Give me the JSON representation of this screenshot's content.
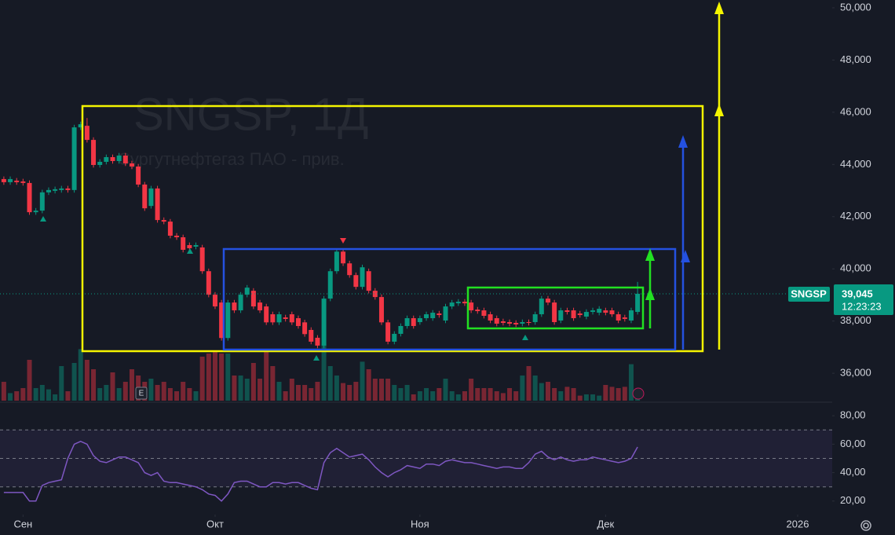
{
  "chart_data": {
    "type": "candlestick",
    "title": "SNGSP, 1Д",
    "subtitle": "Сургутнефтегаз ПАО - прив.",
    "symbol": "SNGSP",
    "last_price": {
      "value": 39045,
      "label": "39,045"
    },
    "countdown": "12:23:23",
    "up_color": "#089981",
    "down_color": "#f23645",
    "xlim": [
      -0.6,
      129.4
    ],
    "xticks": [
      {
        "value": 3,
        "label": "Сен"
      },
      {
        "value": 33,
        "label": "Окт"
      },
      {
        "value": 65,
        "label": "Ноя"
      },
      {
        "value": 94,
        "label": "Дек"
      },
      {
        "value": 124,
        "label": "2026"
      }
    ],
    "ylim": [
      34950,
      50300
    ],
    "yticks": [
      {
        "value": 36000,
        "label": "36,000"
      },
      {
        "value": 38000,
        "label": "38,000"
      },
      {
        "value": 40000,
        "label": "40,000"
      },
      {
        "value": 42000,
        "label": "42,000"
      },
      {
        "value": 44000,
        "label": "44,000"
      },
      {
        "value": 46000,
        "label": "46,000"
      },
      {
        "value": 48000,
        "label": "48,000"
      },
      {
        "value": 50000,
        "label": "50,000"
      }
    ],
    "open": [
      43440,
      43320,
      43380,
      43350,
      43290,
      42170,
      42230,
      42930,
      42990,
      43020,
      43080,
      43020,
      45420,
      45480,
      44940,
      43980,
      44100,
      44280,
      44130,
      44340,
      44040,
      43920,
      43230,
      42410,
      43080,
      41870,
      41810,
      41270,
      41210,
      40910,
      40850,
      40820,
      39910,
      39010,
      38710,
      37350,
      38710,
      38410,
      39010,
      39160,
      38710,
      38560,
      38260,
      37950,
      38140,
      38260,
      38110,
      37950,
      37660,
      37360,
      37060,
      38860,
      39910,
      40660,
      40210,
      39760,
      39310,
      39910,
      39160,
      38920,
      37950,
      37210,
      37510,
      37810,
      38110,
      37960,
      38110,
      38110,
      38290,
      38020,
      38560,
      38680,
      38740,
      38710,
      38440,
      38410,
      38260,
      38110,
      37990,
      37960,
      37930,
      37900,
      37960,
      37960,
      38260,
      38860,
      38710,
      38020,
      38410,
      38410,
      38290,
      38170,
      38350,
      38320,
      38410,
      38410,
      38260,
      38140,
      38020,
      38350
    ],
    "high": [
      43540,
      43540,
      43480,
      43450,
      43390,
      42330,
      43030,
      43120,
      43150,
      43180,
      43180,
      45520,
      45640,
      45780,
      45040,
      44200,
      44380,
      44380,
      44440,
      44440,
      44140,
      44020,
      43330,
      43180,
      43180,
      41970,
      41910,
      41370,
      41310,
      41010,
      41010,
      40920,
      40010,
      39110,
      38810,
      38810,
      38810,
      39110,
      39380,
      39260,
      38810,
      38660,
      38360,
      38360,
      38240,
      38360,
      38210,
      38050,
      37760,
      37460,
      38960,
      40010,
      40760,
      40760,
      40310,
      39860,
      40160,
      40010,
      39260,
      39020,
      38050,
      37610,
      37910,
      38210,
      38210,
      38210,
      38360,
      38420,
      38390,
      38660,
      38810,
      38840,
      38840,
      38810,
      38540,
      38510,
      38360,
      38210,
      38090,
      38060,
      38030,
      38060,
      38060,
      38360,
      38960,
      38960,
      38810,
      38510,
      38510,
      38510,
      38390,
      38450,
      38510,
      38570,
      38510,
      38510,
      38360,
      38240,
      38510,
      39500
    ],
    "low": [
      43220,
      43220,
      43220,
      43190,
      42070,
      42070,
      42130,
      42830,
      42890,
      42920,
      42920,
      42920,
      45320,
      44840,
      43880,
      43880,
      44000,
      44030,
      44030,
      43940,
      43820,
      43130,
      42220,
      42310,
      41770,
      41710,
      41170,
      41110,
      40630,
      40690,
      40750,
      39810,
      38910,
      38460,
      37250,
      37250,
      38310,
      38310,
      38910,
      38460,
      38310,
      37850,
      37850,
      37850,
      37980,
      37850,
      37710,
      37400,
      37110,
      36960,
      36960,
      38760,
      39810,
      40110,
      39660,
      39210,
      39210,
      39060,
      38820,
      37850,
      37110,
      37110,
      37410,
      37710,
      37710,
      37860,
      38010,
      38010,
      38130,
      37920,
      38460,
      38580,
      38580,
      38310,
      38280,
      38100,
      37920,
      37800,
      37830,
      37800,
      37770,
      37800,
      37830,
      37860,
      38160,
      38610,
      37860,
      37920,
      38250,
      38010,
      38130,
      38070,
      38250,
      38220,
      38220,
      38160,
      37920,
      37980,
      37920,
      38250
    ],
    "close": [
      43320,
      43440,
      43320,
      43290,
      42170,
      42230,
      42930,
      43020,
      43050,
      43080,
      43020,
      45420,
      45540,
      44940,
      43980,
      44100,
      44280,
      44130,
      44340,
      44040,
      43920,
      43230,
      42320,
      43080,
      41870,
      41810,
      41270,
      41210,
      40730,
      40790,
      40910,
      39910,
      39010,
      38560,
      37350,
      38710,
      38410,
      39010,
      39280,
      38560,
      38410,
      37950,
      37950,
      38260,
      38080,
      37950,
      37810,
      37500,
      37210,
      37060,
      38860,
      39910,
      40660,
      40210,
      39760,
      39310,
      40060,
      39160,
      38920,
      37950,
      37210,
      37510,
      37810,
      38110,
      37810,
      38110,
      38260,
      38320,
      38230,
      38560,
      38710,
      38740,
      38680,
      38410,
      38380,
      38200,
      38020,
      37900,
      37930,
      37900,
      37870,
      37960,
      37930,
      38260,
      38860,
      38710,
      37960,
      38410,
      38350,
      38110,
      38230,
      38350,
      38410,
      38470,
      38320,
      38260,
      38020,
      38080,
      38410,
      39045
    ],
    "volume": {
      "ylim": [
        0,
        100
      ],
      "values": [
        30,
        12,
        15,
        20,
        65,
        20,
        25,
        18,
        10,
        55,
        15,
        60,
        82,
        65,
        50,
        20,
        25,
        45,
        20,
        30,
        50,
        40,
        30,
        35,
        25,
        30,
        20,
        15,
        30,
        20,
        15,
        70,
        75,
        80,
        75,
        75,
        40,
        40,
        35,
        60,
        35,
        80,
        55,
        30,
        15,
        35,
        25,
        25,
        20,
        30,
        90,
        55,
        40,
        28,
        25,
        30,
        62,
        50,
        35,
        35,
        35,
        25,
        20,
        25,
        10,
        15,
        20,
        15,
        20,
        35,
        15,
        10,
        15,
        35,
        20,
        20,
        20,
        15,
        12,
        20,
        15,
        40,
        55,
        40,
        28,
        30,
        20,
        15,
        22,
        20,
        8,
        10,
        10,
        8,
        25,
        22,
        20,
        22,
        58,
        12
      ]
    },
    "rsi": {
      "color": "#7e57c2",
      "ylim": [
        10.5,
        89.5
      ],
      "levels": [
        30,
        50,
        70
      ],
      "yticks": [
        {
          "value": 20,
          "label": "20,00"
        },
        {
          "value": 40,
          "label": "40,00"
        },
        {
          "value": 60,
          "label": "60,00"
        },
        {
          "value": 80,
          "label": "80,00"
        }
      ],
      "values": [
        26,
        26,
        26,
        26,
        20,
        20,
        31,
        33,
        34,
        35,
        50,
        60,
        62,
        60,
        52,
        48,
        47,
        49,
        51,
        51,
        49,
        47,
        40,
        38,
        40,
        34,
        33,
        33,
        32,
        31,
        30,
        28,
        25,
        24,
        20,
        25,
        33,
        34,
        34,
        32,
        30,
        30,
        33,
        33,
        32,
        33,
        33,
        31,
        29,
        28,
        47,
        54,
        57,
        54,
        51,
        52,
        53,
        49,
        44,
        40,
        37,
        40,
        42,
        45,
        44,
        43,
        46,
        46,
        45,
        48,
        49,
        48,
        47,
        47,
        46,
        45,
        44,
        43,
        44,
        44,
        43,
        43,
        47,
        53,
        55,
        51,
        49,
        51,
        49,
        48,
        49,
        49,
        51,
        50,
        49,
        48,
        47,
        48,
        50,
        58
      ]
    }
  }
}
